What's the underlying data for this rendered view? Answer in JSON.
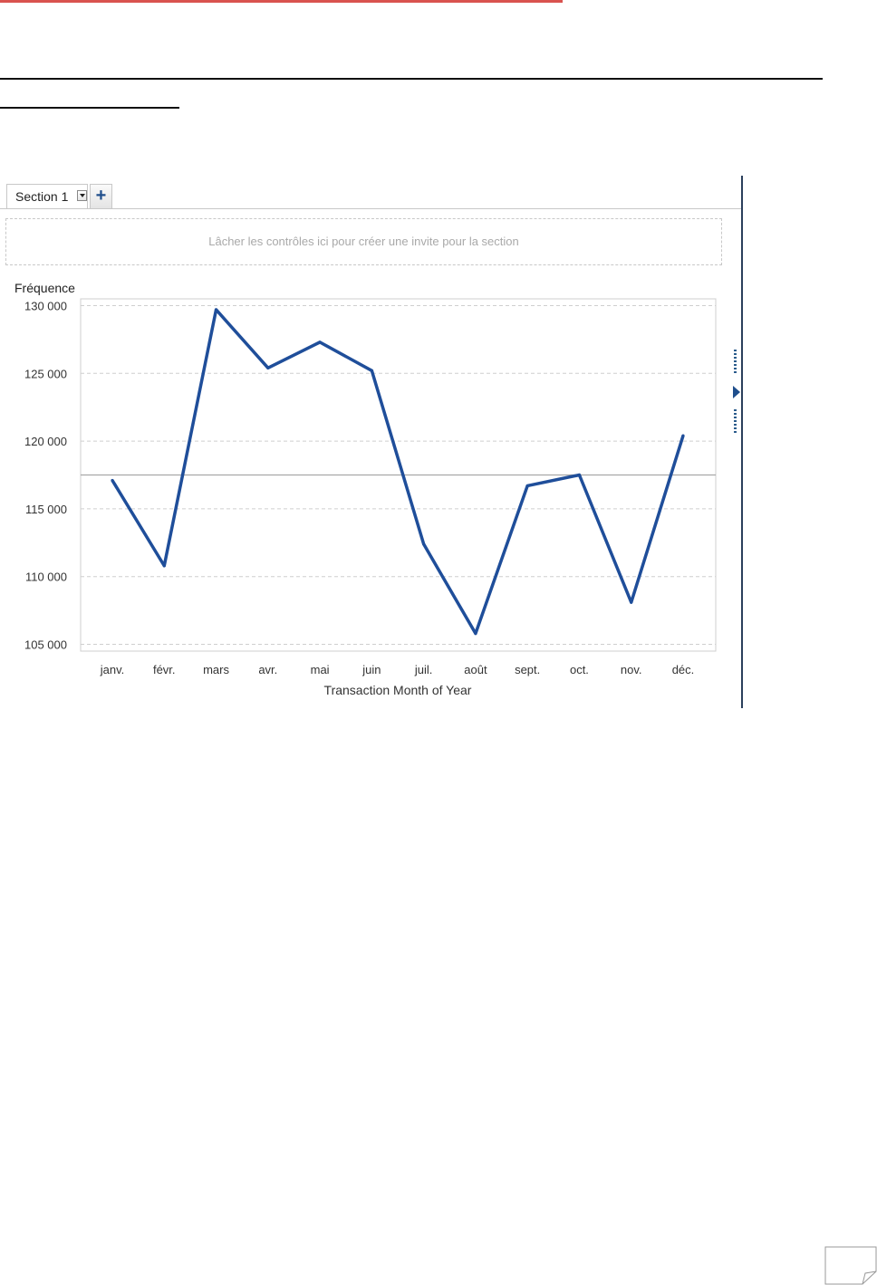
{
  "section_tab": {
    "label": "Section 1",
    "add_label": "+"
  },
  "drop_zone": {
    "text": "Lâcher les contrôles ici pour créer une invite pour la section"
  },
  "colors": {
    "line": "#1f4e9a",
    "accent_red": "#d9534f"
  },
  "icons": [
    "dropdown-icon",
    "plus-icon",
    "collapse-arrow-icon",
    "page-corner-icon"
  ],
  "chart_data": {
    "type": "line",
    "title": "",
    "ylabel": "Fréquence",
    "xlabel": "Transaction Month of Year",
    "categories": [
      "janv.",
      "févr.",
      "mars",
      "avr.",
      "mai",
      "juin",
      "juil.",
      "août",
      "sept.",
      "oct.",
      "nov.",
      "déc."
    ],
    "series": [
      {
        "values": [
          117100,
          110800,
          129700,
          125400,
          127300,
          125200,
          112400,
          105800,
          116700,
          117500,
          108100,
          120400
        ]
      }
    ],
    "reference_line": 117500,
    "ylim": [
      104500,
      130500
    ],
    "y_ticks": [
      105000,
      110000,
      115000,
      120000,
      125000,
      130000
    ],
    "y_tick_labels": [
      "105 000",
      "110 000",
      "115 000",
      "120 000",
      "125 000",
      "130 000"
    ],
    "grid": "horizontal-dashed",
    "legend": "none"
  }
}
